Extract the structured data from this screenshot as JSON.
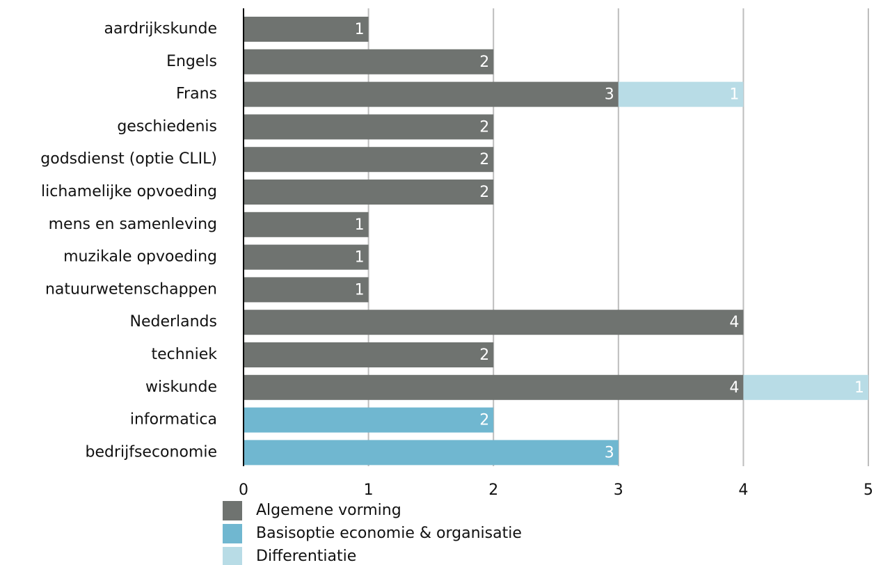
{
  "chart_data": {
    "type": "stacked-bar-horizontal",
    "categories": [
      "aardrijkskunde",
      "Engels",
      "Frans",
      "geschiedenis",
      "godsdienst (optie CLIL)",
      "lichamelijke opvoeding",
      "mens en samenleving",
      "muzikale opvoeding",
      "natuurwetenschappen",
      "Nederlands",
      "techniek",
      "wiskunde",
      "informatica",
      "bedrijfseconomie"
    ],
    "series": [
      {
        "name": "Algemene vorming",
        "color": "#6f7370",
        "values": [
          1,
          2,
          3,
          2,
          2,
          2,
          1,
          1,
          1,
          4,
          2,
          4,
          null,
          null
        ]
      },
      {
        "name": "Basisoptie economie & organisatie",
        "color": "#70b7d0",
        "values": [
          null,
          null,
          null,
          null,
          null,
          null,
          null,
          null,
          null,
          null,
          null,
          null,
          2,
          3
        ]
      },
      {
        "name": "Differentiatie",
        "color": "#b8dce6",
        "values": [
          null,
          null,
          1,
          null,
          null,
          null,
          null,
          null,
          null,
          null,
          null,
          1,
          null,
          null
        ]
      }
    ],
    "xlim": [
      0,
      5
    ],
    "xticks": [
      0,
      1,
      2,
      3,
      4,
      5
    ],
    "grid": true
  }
}
